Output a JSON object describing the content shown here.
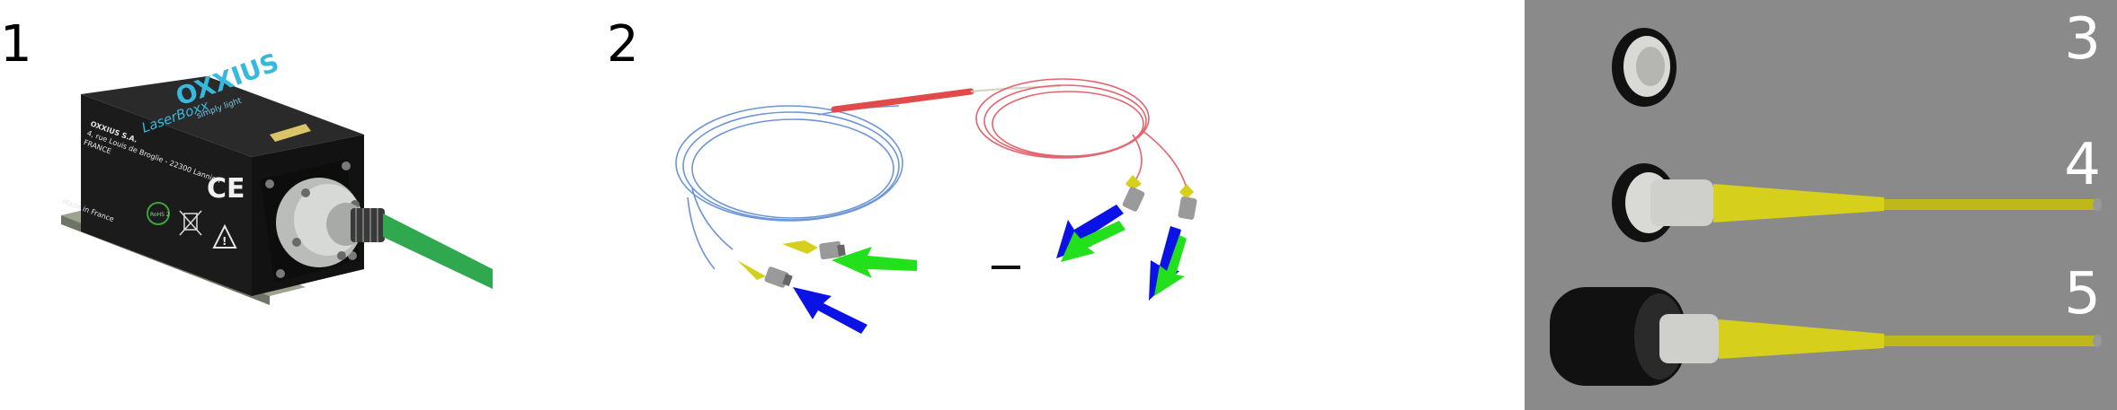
{
  "panels": [
    {
      "label": "1",
      "device": {
        "brand": "OXXIUS",
        "tagline": "simply light",
        "product": "LaserBoxx",
        "address": [
          "OXXIUS S.A.",
          "4, rue Louis de Broglie - 22300 Lannion",
          "FRANCE"
        ],
        "made_in": "Made in France",
        "ce_mark": "CE",
        "rohs_mark": "RoHS 2"
      }
    },
    {
      "label": "2"
    },
    {
      "label": "3"
    },
    {
      "label": "4"
    },
    {
      "label": "5"
    }
  ],
  "colors": {
    "fiber_green": "#2fa84f",
    "arrow_green": "#22e01c",
    "arrow_blue": "#0a12e6",
    "fiber_red": "#e3646e",
    "fiber_blue": "#6d95d8",
    "fiber_yellow": "#d6cf1c",
    "panel_gray": "#8a8a8a"
  }
}
